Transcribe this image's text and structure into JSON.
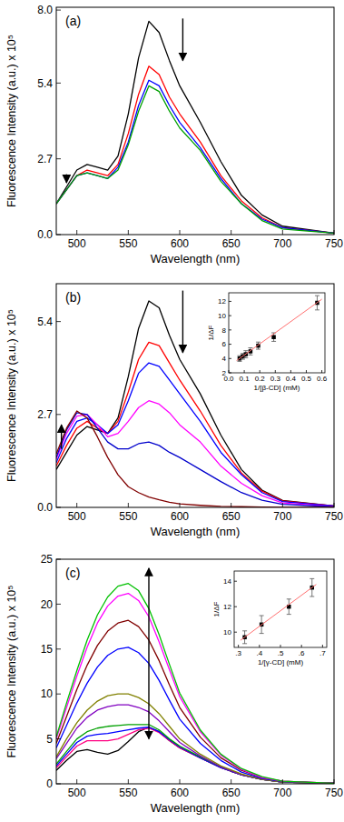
{
  "chart_data": [
    {
      "type": "line",
      "title": "(a)",
      "xlabel": "Wavelength (nm)",
      "ylabel": "Fluorescence Intensity (a.u.) x 10⁵",
      "xlim": [
        480,
        750
      ],
      "ylim": [
        0,
        8.1
      ],
      "xticks": [
        500,
        550,
        600,
        650,
        700,
        750
      ],
      "yticks": [
        {
          "value": 0,
          "label": "0.0"
        },
        2.7,
        5.4,
        {
          "value": 8,
          "label": "8.0"
        }
      ],
      "x": [
        480,
        490,
        500,
        510,
        520,
        530,
        540,
        550,
        560,
        570,
        580,
        590,
        600,
        620,
        640,
        660,
        680,
        700,
        750
      ],
      "series": [
        {
          "color": "#000000",
          "values": [
            1.1,
            1.7,
            2.3,
            2.5,
            2.4,
            2.3,
            2.8,
            4.3,
            6.3,
            7.6,
            7.2,
            6.2,
            5.3,
            4.0,
            2.6,
            1.4,
            0.7,
            0.3,
            0.05
          ]
        },
        {
          "color": "#ff0000",
          "values": [
            1.1,
            1.6,
            2.1,
            2.3,
            2.2,
            2.1,
            2.5,
            3.6,
            5.0,
            6.0,
            5.7,
            4.9,
            4.3,
            3.3,
            2.1,
            1.2,
            0.6,
            0.25,
            0.05
          ]
        },
        {
          "color": "#0000ff",
          "values": [
            1.1,
            1.6,
            2.1,
            2.2,
            2.1,
            2.0,
            2.4,
            3.3,
            4.6,
            5.5,
            5.3,
            4.6,
            4.0,
            3.1,
            2.0,
            1.1,
            0.55,
            0.25,
            0.05
          ]
        },
        {
          "color": "#00a000",
          "values": [
            1.1,
            1.6,
            2.1,
            2.2,
            2.1,
            2.0,
            2.3,
            3.2,
            4.4,
            5.3,
            5.1,
            4.4,
            3.8,
            3.0,
            1.9,
            1.1,
            0.5,
            0.2,
            0.05
          ]
        }
      ]
    },
    {
      "type": "line",
      "title": "(b)",
      "xlabel": "Wavelength (nm)",
      "ylabel": "Fluorescence Intensity (a.u.) x 10⁵",
      "xlim": [
        480,
        750
      ],
      "ylim": [
        0,
        6.5
      ],
      "xticks": [
        500,
        550,
        600,
        650,
        700,
        750
      ],
      "yticks": [
        {
          "value": 0,
          "label": "0.0"
        },
        2.7,
        5.4
      ],
      "x": [
        480,
        490,
        500,
        510,
        520,
        530,
        540,
        550,
        560,
        570,
        580,
        590,
        600,
        620,
        640,
        660,
        680,
        700,
        750
      ],
      "series": [
        {
          "color": "#000000",
          "values": [
            1.1,
            1.6,
            2.1,
            2.35,
            2.25,
            2.15,
            2.6,
            3.8,
            5.2,
            6.0,
            5.8,
            5.0,
            4.3,
            3.3,
            2.1,
            1.1,
            0.5,
            0.2,
            0.04
          ]
        },
        {
          "color": "#ff0000",
          "values": [
            1.2,
            1.8,
            2.3,
            2.5,
            2.3,
            2.15,
            2.5,
            3.35,
            4.3,
            4.8,
            4.7,
            4.2,
            3.7,
            2.8,
            1.8,
            1.0,
            0.47,
            0.19,
            0.04
          ]
        },
        {
          "color": "#0000ff",
          "values": [
            1.3,
            2.0,
            2.5,
            2.6,
            2.4,
            2.15,
            2.4,
            3.1,
            3.9,
            4.2,
            4.1,
            3.7,
            3.3,
            2.5,
            1.6,
            0.95,
            0.43,
            0.17,
            0.04
          ]
        },
        {
          "color": "#ff00ff",
          "values": [
            1.4,
            2.15,
            2.65,
            2.7,
            2.4,
            2.05,
            2.15,
            2.5,
            2.9,
            3.1,
            3.0,
            2.75,
            2.4,
            1.9,
            1.2,
            0.7,
            0.34,
            0.13,
            0.03
          ]
        },
        {
          "color": "#0000cc",
          "values": [
            1.45,
            2.25,
            2.75,
            2.7,
            2.3,
            1.9,
            1.7,
            1.7,
            1.85,
            1.9,
            1.8,
            1.6,
            1.45,
            1.1,
            0.75,
            0.43,
            0.21,
            0.09,
            0.02
          ]
        },
        {
          "color": "#800000",
          "values": [
            1.55,
            2.3,
            2.8,
            2.6,
            2.05,
            1.45,
            0.95,
            0.6,
            0.43,
            0.3,
            0.22,
            0.15,
            0.1,
            0.06,
            0.03,
            0.02,
            0.01,
            0,
            0
          ]
        }
      ]
    },
    {
      "type": "scatter",
      "xlabel": "1/[β-CD] (mM)",
      "ylabel": "1/ΔF",
      "xlim": [
        0,
        0.62
      ],
      "ylim": [
        2,
        13.2
      ],
      "xticks": [
        {
          "value": 0,
          "label": "0.0"
        },
        0.1,
        0.2,
        0.3,
        0.4,
        0.5,
        0.6
      ],
      "yticks": [
        2,
        4,
        6,
        8,
        10,
        12
      ],
      "series": [
        {
          "type": "scatter",
          "marker": "square",
          "color": "#000000",
          "x": [
            0.07,
            0.09,
            0.11,
            0.14,
            0.19,
            0.29,
            0.57
          ],
          "values": [
            4.0,
            4.3,
            4.6,
            5.0,
            5.8,
            7.0,
            11.8
          ],
          "errors": [
            0.4,
            0.4,
            0.5,
            0.5,
            0.5,
            0.6,
            1.0
          ]
        },
        {
          "type": "line",
          "color": "#ff7070",
          "x": [
            0.05,
            0.6
          ],
          "values": [
            3.7,
            12.3
          ]
        }
      ]
    },
    {
      "type": "line",
      "title": "(c)",
      "xlabel": "Wavelength (nm)",
      "ylabel": "Fluorescence Intensity (a.u.) x 10⁵",
      "xlim": [
        480,
        750
      ],
      "ylim": [
        0,
        25
      ],
      "xticks": [
        500,
        550,
        600,
        650,
        700,
        750
      ],
      "yticks": [
        0,
        5,
        10,
        15,
        20,
        25
      ],
      "x": [
        480,
        490,
        500,
        510,
        520,
        530,
        540,
        550,
        560,
        570,
        580,
        590,
        600,
        620,
        640,
        660,
        680,
        700,
        750
      ],
      "series": [
        {
          "color": "#000000",
          "values": [
            1.5,
            2.6,
            3.6,
            3.8,
            3.5,
            3.3,
            3.7,
            4.7,
            5.8,
            6.3,
            5.8,
            4.8,
            4.0,
            2.9,
            1.8,
            1.0,
            0.5,
            0.2,
            0.05
          ]
        },
        {
          "color": "#ff0080",
          "values": [
            1.8,
            3.0,
            4.2,
            4.8,
            4.8,
            4.8,
            5.0,
            5.5,
            6.0,
            6.2,
            5.7,
            4.8,
            4.0,
            2.9,
            1.8,
            1.0,
            0.5,
            0.2,
            0.05
          ]
        },
        {
          "color": "#0000ff",
          "values": [
            2.0,
            3.3,
            4.6,
            5.3,
            5.5,
            5.6,
            5.8,
            6.0,
            6.2,
            6.3,
            5.8,
            4.9,
            4.1,
            2.9,
            1.8,
            1.0,
            0.5,
            0.2,
            0.05
          ]
        },
        {
          "color": "#00a000",
          "values": [
            2.2,
            3.6,
            5.0,
            5.8,
            6.2,
            6.4,
            6.5,
            6.6,
            6.6,
            6.6,
            6.0,
            5.0,
            4.2,
            3.0,
            1.9,
            1.0,
            0.5,
            0.2,
            0.05
          ]
        },
        {
          "color": "#8000c0",
          "values": [
            2.8,
            4.5,
            6.2,
            7.4,
            8.2,
            8.6,
            8.8,
            8.8,
            8.5,
            8.0,
            7.0,
            5.8,
            4.6,
            3.1,
            1.9,
            1.0,
            0.5,
            0.2,
            0.05
          ]
        },
        {
          "color": "#808000",
          "values": [
            3.0,
            5.0,
            6.8,
            8.2,
            9.2,
            9.8,
            10.0,
            10.0,
            9.6,
            8.9,
            7.8,
            6.4,
            5.0,
            3.3,
            2.0,
            1.1,
            0.5,
            0.2,
            0.05
          ]
        },
        {
          "color": "#0000ff",
          "values": [
            4.0,
            6.5,
            9.0,
            11.2,
            13.0,
            14.3,
            15.0,
            15.2,
            14.6,
            13.4,
            11.5,
            9.3,
            7.2,
            4.5,
            2.6,
            1.3,
            0.6,
            0.25,
            0.05
          ]
        },
        {
          "color": "#800000",
          "values": [
            4.5,
            7.5,
            10.5,
            13.2,
            15.4,
            17.0,
            17.9,
            18.2,
            17.5,
            16.0,
            13.7,
            11.0,
            8.5,
            5.2,
            2.9,
            1.5,
            0.7,
            0.3,
            0.05
          ]
        },
        {
          "color": "#ff00ff",
          "values": [
            5.0,
            8.5,
            12.0,
            15.2,
            17.9,
            19.8,
            20.9,
            21.2,
            20.4,
            18.6,
            15.8,
            12.7,
            9.7,
            5.8,
            3.2,
            1.6,
            0.7,
            0.3,
            0.05
          ]
        },
        {
          "color": "#00c000",
          "values": [
            5.2,
            9.0,
            12.6,
            16.0,
            18.8,
            20.8,
            22.0,
            22.3,
            21.5,
            19.5,
            16.6,
            13.3,
            10.1,
            6.0,
            3.3,
            1.7,
            0.8,
            0.3,
            0.05
          ]
        }
      ]
    },
    {
      "type": "scatter",
      "xlabel": "1/[γ-CD] (mM)",
      "ylabel": "1/ΔF",
      "xlim": [
        0.28,
        0.72
      ],
      "ylim": [
        8.8,
        14.8
      ],
      "xticks": [
        {
          "value": 0.3,
          "label": ".3"
        },
        {
          "value": 0.4,
          "label": ".4"
        },
        {
          "value": 0.5,
          "label": ".5"
        },
        {
          "value": 0.6,
          "label": ".6"
        },
        {
          "value": 0.7,
          "label": ".7"
        }
      ],
      "yticks": [
        10,
        12,
        14
      ],
      "series": [
        {
          "type": "scatter",
          "marker": "square",
          "color": "#000000",
          "x": [
            0.33,
            0.41,
            0.54,
            0.65
          ],
          "values": [
            9.6,
            10.6,
            12.0,
            13.5
          ],
          "errors": [
            0.5,
            0.7,
            0.6,
            0.7
          ]
        },
        {
          "type": "line",
          "color": "#ff7070",
          "x": [
            0.31,
            0.67
          ],
          "values": [
            9.36,
            13.75
          ]
        }
      ]
    }
  ]
}
